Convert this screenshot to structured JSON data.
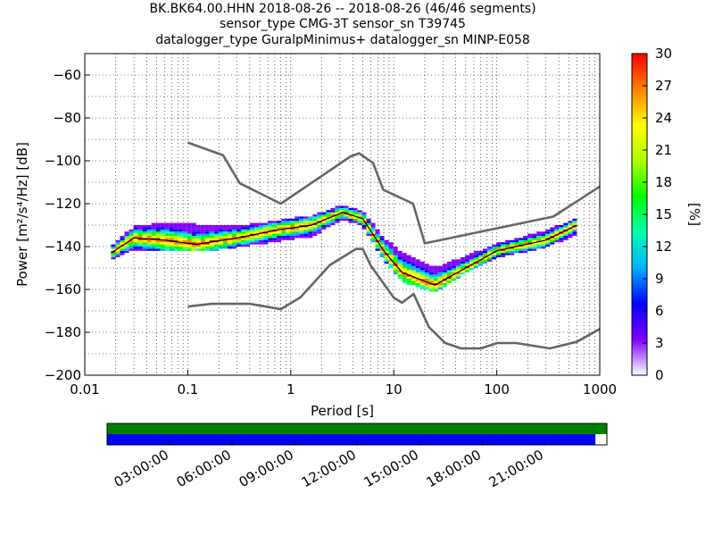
{
  "header": {
    "title_line1": "BK.BK64.00.HHN   2018-08-26 -- 2018-08-26  (46/46 segments)",
    "title_line2": "sensor_type CMG-3T sensor_sn T39745",
    "title_line3": "datalogger_type GuralpMinimus+ datalogger_sn MINP-E058"
  },
  "chart_data": [
    {
      "type": "heatmap",
      "title": "BK.BK64.00.HHN   2018-08-26 -- 2018-08-26  (46/46 segments)",
      "xlabel": "Period [s]",
      "ylabel": "Power [m²/s⁴/Hz] [dB]",
      "xscale": "log",
      "xlim": [
        0.01,
        1000
      ],
      "ylim": [
        -200,
        -50
      ],
      "x_ticks": [
        "0.01",
        "0.1",
        "1",
        "10",
        "100",
        "1000"
      ],
      "y_ticks": [
        "−60",
        "−80",
        "−100",
        "−120",
        "−140",
        "−160",
        "−180",
        "−200"
      ],
      "grid": "dotted",
      "colorbar": {
        "label": "[%]",
        "range": [
          0,
          30
        ],
        "ticks": [
          "0",
          "3",
          "6",
          "9",
          "12",
          "15",
          "18",
          "21",
          "24",
          "27",
          "30"
        ],
        "colors": [
          "#ffffff",
          "#8000ff",
          "#0000ff",
          "#00b0ff",
          "#00ffb0",
          "#00ff00",
          "#b0ff00",
          "#ffff00",
          "#ff8000",
          "#ff0000"
        ]
      },
      "series": [
        {
          "name": "",
          "role": "high noise model",
          "x": [
            0.1,
            0.22,
            0.32,
            0.8,
            3.8,
            4.6,
            6.3,
            7.9,
            15.4,
            20,
            354.8,
            1000
          ],
          "y": [
            -91.5,
            -97.4,
            -110.5,
            -120,
            -98,
            -96.5,
            -101,
            -113.5,
            -120,
            -138.5,
            -126,
            -112
          ]
        },
        {
          "name": "",
          "role": "low noise model",
          "x": [
            0.1,
            0.17,
            0.4,
            0.8,
            1.24,
            2.4,
            4.3,
            5,
            6,
            10,
            12,
            15.6,
            21.9,
            31.6,
            45,
            70,
            101,
            154,
            328,
            600,
            10000
          ],
          "y": [
            -168,
            -166.7,
            -166.7,
            -169.2,
            -163.7,
            -148.6,
            -141.1,
            -141.1,
            -149,
            -163.8,
            -166.2,
            -162.1,
            -177.5,
            -185,
            -187.5,
            -187.5,
            -185,
            -185,
            -187.5,
            -184.4,
            -151.5
          ]
        },
        {
          "name": "",
          "role": "mode (most probable power)",
          "x": [
            0.018,
            0.03,
            0.06,
            0.12,
            0.3,
            0.8,
            1.6,
            3.2,
            5,
            8,
            12,
            25,
            50,
            100,
            300,
            600
          ],
          "y": [
            -143,
            -136,
            -137,
            -139,
            -136,
            -132,
            -130,
            -124,
            -127,
            -142,
            -152,
            -158,
            -150,
            -142,
            -137,
            -130
          ]
        }
      ],
      "density_bands": [
        {
          "x": [
            0.018,
            0.03,
            0.06,
            0.12,
            0.3,
            0.8,
            1.6,
            3.2,
            5,
            8,
            12,
            25,
            50,
            100,
            300,
            600
          ],
          "y_low": [
            -146,
            -141,
            -142,
            -142,
            -140,
            -137,
            -135,
            -127,
            -130,
            -146,
            -156,
            -161,
            -152,
            -145,
            -140,
            -134
          ],
          "y_high": [
            -140,
            -131,
            -129,
            -130,
            -131,
            -128,
            -126,
            -121,
            -124,
            -136,
            -143,
            -150,
            -145,
            -139,
            -133,
            -127
          ]
        }
      ]
    },
    {
      "type": "timeline",
      "x_ticks": [
        "03:00:00",
        "06:00:00",
        "09:00:00",
        "12:00:00",
        "15:00:00",
        "18:00:00",
        "21:00:00"
      ],
      "bars": [
        {
          "name": "segments",
          "color": "#008000",
          "start": 0,
          "end": 1.0
        },
        {
          "name": "data",
          "color": "#0000ff",
          "start": 0,
          "end": 0.977
        }
      ]
    }
  ]
}
